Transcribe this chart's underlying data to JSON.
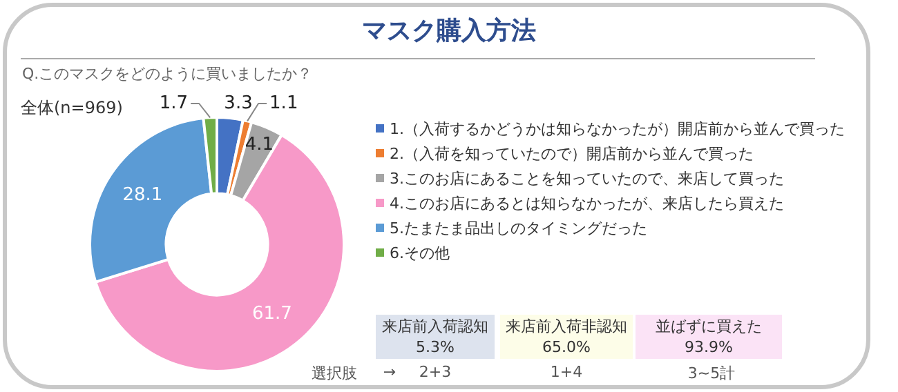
{
  "chart_data": {
    "type": "donut",
    "title": "マスク購入方法",
    "subtitle": "Q.このマスクをどのように買いましたか？",
    "categories": [
      "1.（入荷するかどうかは知らなかったが）開店前から並んで買った",
      "2.（入荷を知っていたので）開店前から並んで買った",
      "3.このお店にあることを知っていたので、来店して買った",
      "4.このお店にあるとは知らなかったが、来店したら買えた",
      "5.たまたま品出しのタイミングだった",
      "6.その他"
    ],
    "values": [
      3.3,
      1.1,
      4.1,
      61.7,
      28.1,
      1.7
    ],
    "colors": [
      "#4472c4",
      "#ed7d31",
      "#a5a5a5",
      "#f799c8",
      "#5b9bd5",
      "#70ad47"
    ],
    "data_labels": true,
    "legend": "right",
    "annotations": [
      "全体(n=969)",
      "来店前入荷認知",
      "5.3%",
      "来店前入荷非認知",
      "65.0%",
      "並ばずに買えた",
      "93.9%",
      "選択肢",
      "→",
      "2+3",
      "1+4",
      "3~5計"
    ]
  }
}
